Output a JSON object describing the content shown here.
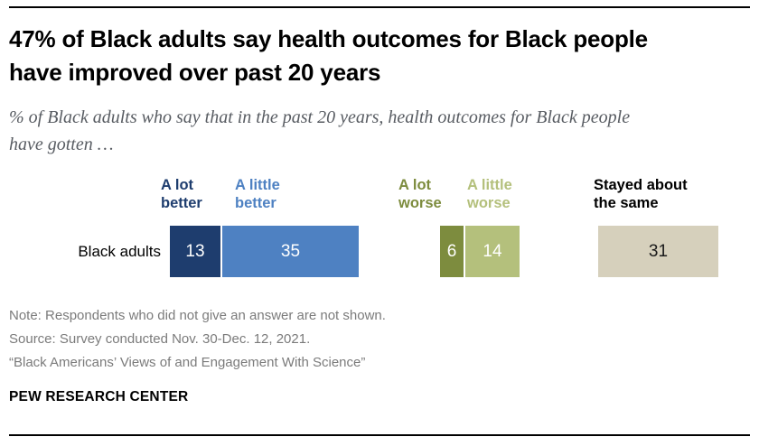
{
  "header": {
    "title": "47% of Black adults say health outcomes for Black people have improved over past 20 years",
    "subtitle": "% of Black adults who say that in the past 20 years, health outcomes for Black people have gotten …"
  },
  "chart_data": {
    "type": "bar",
    "subtype": "horizontal-stacked-grouped",
    "title": "47% of Black adults say health outcomes for Black people have improved over past 20 years",
    "unit": "% of Black adults",
    "row_label": "Black adults",
    "xlim": [
      0,
      100
    ],
    "categories": [
      "A lot better",
      "A little better",
      "A lot worse",
      "A little worse",
      "Stayed about the same"
    ],
    "values": [
      13,
      35,
      6,
      14,
      31
    ],
    "series": [
      {
        "name": "A lot better",
        "value": 13,
        "color": "#1e3d6e",
        "label_color": "#1e3d6e",
        "value_color": "#ffffff"
      },
      {
        "name": "A little better",
        "value": 35,
        "color": "#4e81c2",
        "label_color": "#4e81c2",
        "value_color": "#ffffff"
      },
      {
        "name": "A lot worse",
        "value": 6,
        "color": "#7d8c3e",
        "label_color": "#7d8c3e",
        "value_color": "#ffffff"
      },
      {
        "name": "A little worse",
        "value": 14,
        "color": "#b4c07c",
        "label_color": "#b4c07c",
        "value_color": "#ffffff"
      },
      {
        "name": "Stayed about the same",
        "value": 31,
        "color": "#d6d0bc",
        "label_color": "#000000",
        "value_color": "#1a1a1a"
      }
    ],
    "legend_position": "above-bars",
    "grid": false
  },
  "footer": {
    "note": "Note: Respondents who did not give an answer are not shown.",
    "source": "Source: Survey conducted Nov. 30-Dec. 12, 2021.",
    "citation": "“Black Americans’ Views of and Engagement With Science”",
    "brand": "PEW RESEARCH CENTER"
  }
}
